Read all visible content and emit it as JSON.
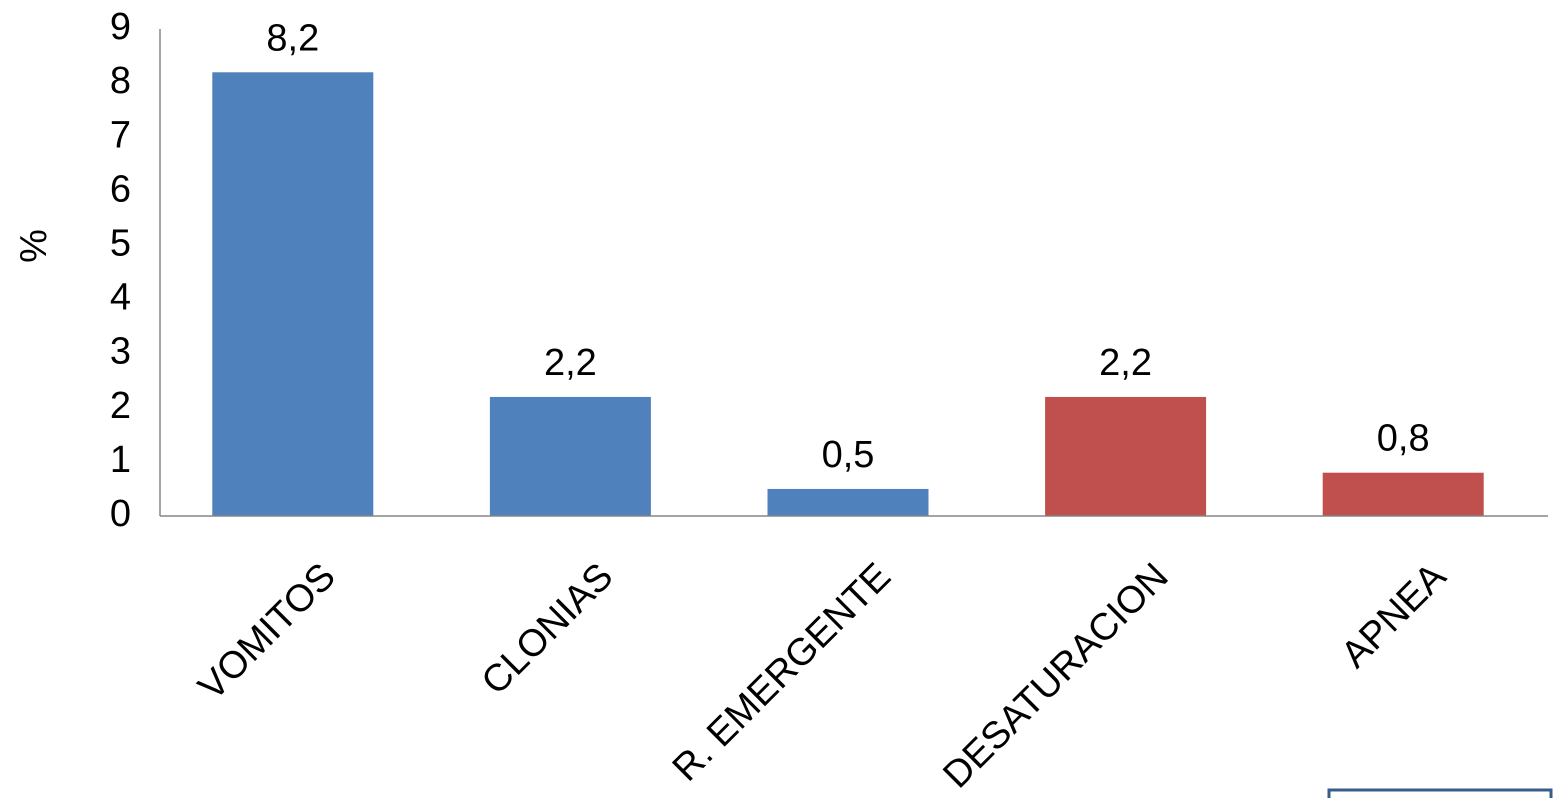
{
  "chart_data": {
    "type": "bar",
    "title": "",
    "xlabel": "",
    "ylabel": "%",
    "ylim": [
      0,
      9
    ],
    "yticks": [
      0,
      1,
      2,
      3,
      4,
      5,
      6,
      7,
      8,
      9
    ],
    "grid": false,
    "legend": "none",
    "categories": [
      "VOMITOS",
      "CLONIAS",
      "R. EMERGENTE",
      "DESATURACION",
      "APNEA"
    ],
    "values": [
      8.2,
      2.2,
      0.5,
      2.2,
      0.8
    ],
    "data_labels": [
      "8,2",
      "2,2",
      "0,5",
      "2,2",
      "0,8"
    ],
    "bar_colors": [
      "#4f81bd",
      "#4f81bd",
      "#4f81bd",
      "#c0504d",
      "#c0504d"
    ]
  },
  "colors": {
    "blue": "#4f81bd",
    "red": "#c0504d",
    "corner_box_border": "#385d8a"
  }
}
